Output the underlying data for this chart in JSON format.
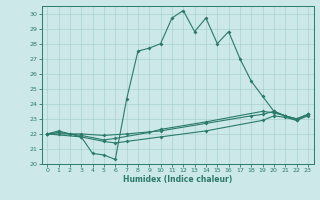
{
  "background_color": "#cce8e8",
  "line_color": "#2a7a6a",
  "xlabel": "Humidex (Indice chaleur)",
  "xlim": [
    -0.5,
    23.5
  ],
  "ylim": [
    20,
    30.5
  ],
  "xticks": [
    0,
    1,
    2,
    3,
    4,
    5,
    6,
    7,
    8,
    9,
    10,
    11,
    12,
    13,
    14,
    15,
    16,
    17,
    18,
    19,
    20,
    21,
    22,
    23
  ],
  "yticks": [
    20,
    21,
    22,
    23,
    24,
    25,
    26,
    27,
    28,
    29,
    30
  ],
  "curve1_x": [
    0,
    1,
    2,
    3,
    4,
    5,
    6,
    7,
    8,
    9,
    10,
    11,
    12,
    13,
    14,
    15,
    16,
    17,
    18,
    19,
    20,
    21,
    22,
    23
  ],
  "curve1_y": [
    22.0,
    22.2,
    22.0,
    21.8,
    20.7,
    20.6,
    20.3,
    24.3,
    27.5,
    27.7,
    28.0,
    29.7,
    30.2,
    28.8,
    29.7,
    28.0,
    28.8,
    27.0,
    25.5,
    24.5,
    23.5,
    23.2,
    22.9,
    23.3
  ],
  "curve2_x": [
    0,
    1,
    2,
    3,
    5,
    6,
    9,
    10,
    14,
    19,
    20,
    21,
    22,
    23
  ],
  "curve2_y": [
    22.0,
    22.1,
    22.0,
    21.9,
    21.6,
    21.7,
    22.1,
    22.3,
    22.8,
    23.5,
    23.4,
    23.2,
    23.0,
    23.3
  ],
  "curve3_x": [
    0,
    1,
    3,
    5,
    7,
    10,
    14,
    18,
    19,
    20,
    21,
    22,
    23
  ],
  "curve3_y": [
    22.0,
    22.0,
    22.0,
    21.9,
    22.0,
    22.2,
    22.7,
    23.2,
    23.3,
    23.5,
    23.2,
    23.0,
    23.3
  ],
  "curve4_x": [
    0,
    3,
    5,
    6,
    7,
    10,
    14,
    19,
    20,
    21,
    22,
    23
  ],
  "curve4_y": [
    22.0,
    21.8,
    21.5,
    21.4,
    21.5,
    21.8,
    22.2,
    22.9,
    23.2,
    23.1,
    22.9,
    23.2
  ]
}
